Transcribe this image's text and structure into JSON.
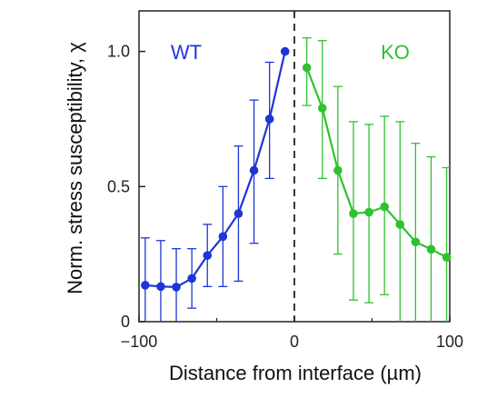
{
  "chart_data": {
    "type": "line",
    "xlabel": "Distance from interface (µm)",
    "ylabel": "Norm. stress susceptibility, χ",
    "xlim": [
      -100,
      100
    ],
    "ylim": [
      0,
      1.15
    ],
    "xticks": [
      -100,
      0,
      100
    ],
    "xtick_labels": [
      "−100",
      "0",
      "100"
    ],
    "yticks": [
      0,
      0.5,
      1.0
    ],
    "ytick_labels": [
      "0",
      "0.5",
      "1.0"
    ],
    "interface_line": {
      "x": 0,
      "style": "dashed"
    },
    "grid": false,
    "series": [
      {
        "name": "WT",
        "color": "#1f35d6",
        "points": [
          {
            "x": -96,
            "y": 0.135,
            "lo": 0.0,
            "hi": 0.31
          },
          {
            "x": -86,
            "y": 0.13,
            "lo": 0.0,
            "hi": 0.3
          },
          {
            "x": -76,
            "y": 0.128,
            "lo": 0.0,
            "hi": 0.27
          },
          {
            "x": -66,
            "y": 0.16,
            "lo": 0.05,
            "hi": 0.27
          },
          {
            "x": -56,
            "y": 0.245,
            "lo": 0.13,
            "hi": 0.36
          },
          {
            "x": -46,
            "y": 0.315,
            "lo": 0.13,
            "hi": 0.5
          },
          {
            "x": -36,
            "y": 0.4,
            "lo": 0.15,
            "hi": 0.65
          },
          {
            "x": -26,
            "y": 0.56,
            "lo": 0.29,
            "hi": 0.82
          },
          {
            "x": -16,
            "y": 0.75,
            "lo": 0.53,
            "hi": 0.96
          },
          {
            "x": -6,
            "y": 1.0,
            "lo": 1.0,
            "hi": 1.0
          }
        ]
      },
      {
        "name": "KO",
        "color": "#2fc22f",
        "points": [
          {
            "x": 8,
            "y": 0.94,
            "lo": 0.8,
            "hi": 1.05
          },
          {
            "x": 18,
            "y": 0.79,
            "lo": 0.53,
            "hi": 1.04
          },
          {
            "x": 28,
            "y": 0.56,
            "lo": 0.25,
            "hi": 0.87
          },
          {
            "x": 38,
            "y": 0.4,
            "lo": 0.08,
            "hi": 0.74
          },
          {
            "x": 48,
            "y": 0.405,
            "lo": 0.07,
            "hi": 0.73
          },
          {
            "x": 58,
            "y": 0.425,
            "lo": 0.1,
            "hi": 0.76
          },
          {
            "x": 68,
            "y": 0.36,
            "lo": 0.0,
            "hi": 0.74
          },
          {
            "x": 78,
            "y": 0.295,
            "lo": 0.0,
            "hi": 0.66
          },
          {
            "x": 88,
            "y": 0.268,
            "lo": 0.0,
            "hi": 0.61
          },
          {
            "x": 98,
            "y": 0.238,
            "lo": 0.0,
            "hi": 0.57
          }
        ]
      }
    ]
  }
}
